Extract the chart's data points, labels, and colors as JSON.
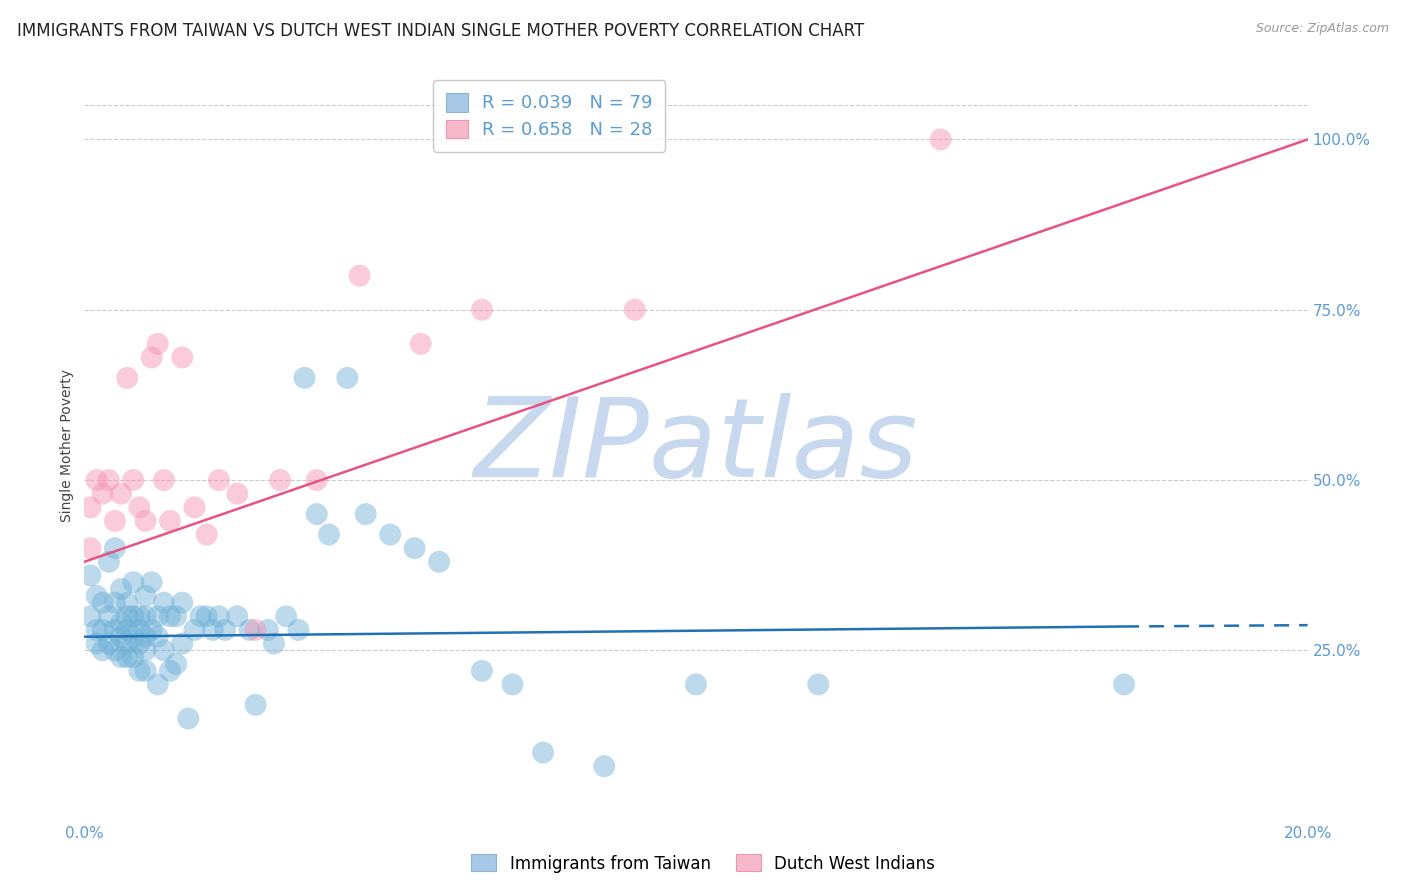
{
  "title": "IMMIGRANTS FROM TAIWAN VS DUTCH WEST INDIAN SINGLE MOTHER POVERTY CORRELATION CHART",
  "source": "Source: ZipAtlas.com",
  "ylabel": "Single Mother Poverty",
  "xmin": 0.0,
  "xmax": 0.2,
  "ymin": 0.0,
  "ymax": 1.1,
  "yticks": [
    0.25,
    0.5,
    0.75,
    1.0
  ],
  "ytick_labels": [
    "25.0%",
    "50.0%",
    "75.0%",
    "100.0%"
  ],
  "xticks": [
    0.0,
    0.04,
    0.08,
    0.12,
    0.16,
    0.2
  ],
  "xtick_labels": [
    "0.0%",
    "",
    "",
    "",
    "",
    "20.0%"
  ],
  "watermark_text": "ZIPatlas",
  "watermark_color": "#c8d8ee",
  "title_fontsize": 12,
  "axis_label_fontsize": 10,
  "tick_fontsize": 11,
  "blue_color": "#6baed6",
  "pink_color": "#f48fb1",
  "blue_line_color": "#2171b5",
  "pink_line_color": "#e75480",
  "legend_label_blue": "R = 0.039   N = 79",
  "legend_label_pink": "R = 0.658   N = 28",
  "legend_label_blue_bottom": "Immigrants from Taiwan",
  "legend_label_pink_bottom": "Dutch West Indians",
  "blue_scatter_x": [
    0.001,
    0.001,
    0.002,
    0.002,
    0.002,
    0.003,
    0.003,
    0.003,
    0.004,
    0.004,
    0.004,
    0.005,
    0.005,
    0.005,
    0.005,
    0.006,
    0.006,
    0.006,
    0.006,
    0.007,
    0.007,
    0.007,
    0.007,
    0.007,
    0.008,
    0.008,
    0.008,
    0.008,
    0.009,
    0.009,
    0.009,
    0.009,
    0.01,
    0.01,
    0.01,
    0.01,
    0.01,
    0.011,
    0.011,
    0.012,
    0.012,
    0.012,
    0.013,
    0.013,
    0.014,
    0.014,
    0.015,
    0.015,
    0.016,
    0.016,
    0.017,
    0.018,
    0.019,
    0.02,
    0.021,
    0.022,
    0.023,
    0.025,
    0.027,
    0.028,
    0.03,
    0.031,
    0.033,
    0.035,
    0.036,
    0.038,
    0.04,
    0.043,
    0.046,
    0.05,
    0.054,
    0.058,
    0.065,
    0.07,
    0.075,
    0.085,
    0.1,
    0.12,
    0.17
  ],
  "blue_scatter_y": [
    0.36,
    0.3,
    0.33,
    0.28,
    0.26,
    0.32,
    0.28,
    0.25,
    0.38,
    0.3,
    0.26,
    0.4,
    0.32,
    0.28,
    0.25,
    0.34,
    0.29,
    0.27,
    0.24,
    0.32,
    0.3,
    0.28,
    0.26,
    0.24,
    0.35,
    0.3,
    0.27,
    0.24,
    0.3,
    0.28,
    0.26,
    0.22,
    0.33,
    0.3,
    0.27,
    0.25,
    0.22,
    0.35,
    0.28,
    0.3,
    0.27,
    0.2,
    0.32,
    0.25,
    0.3,
    0.22,
    0.3,
    0.23,
    0.32,
    0.26,
    0.15,
    0.28,
    0.3,
    0.3,
    0.28,
    0.3,
    0.28,
    0.3,
    0.28,
    0.17,
    0.28,
    0.26,
    0.3,
    0.28,
    0.65,
    0.45,
    0.42,
    0.65,
    0.45,
    0.42,
    0.4,
    0.38,
    0.22,
    0.2,
    0.1,
    0.08,
    0.2,
    0.2,
    0.2
  ],
  "pink_scatter_x": [
    0.001,
    0.001,
    0.002,
    0.003,
    0.004,
    0.005,
    0.006,
    0.007,
    0.008,
    0.009,
    0.01,
    0.011,
    0.012,
    0.013,
    0.014,
    0.016,
    0.018,
    0.02,
    0.022,
    0.025,
    0.028,
    0.032,
    0.038,
    0.045,
    0.055,
    0.065,
    0.09,
    0.14
  ],
  "pink_scatter_y": [
    0.4,
    0.46,
    0.5,
    0.48,
    0.5,
    0.44,
    0.48,
    0.65,
    0.5,
    0.46,
    0.44,
    0.68,
    0.7,
    0.5,
    0.44,
    0.68,
    0.46,
    0.42,
    0.5,
    0.48,
    0.28,
    0.5,
    0.5,
    0.8,
    0.7,
    0.75,
    0.75,
    1.0
  ],
  "blue_trend_x0": 0.0,
  "blue_trend_x1": 0.17,
  "blue_trend_y0": 0.27,
  "blue_trend_y1": 0.285,
  "blue_trend_dash_x0": 0.17,
  "blue_trend_dash_x1": 0.2,
  "blue_trend_dash_y0": 0.285,
  "blue_trend_dash_y1": 0.287,
  "pink_trend_x0": 0.0,
  "pink_trend_x1": 0.2,
  "pink_trend_y0": 0.38,
  "pink_trend_y1": 1.0
}
